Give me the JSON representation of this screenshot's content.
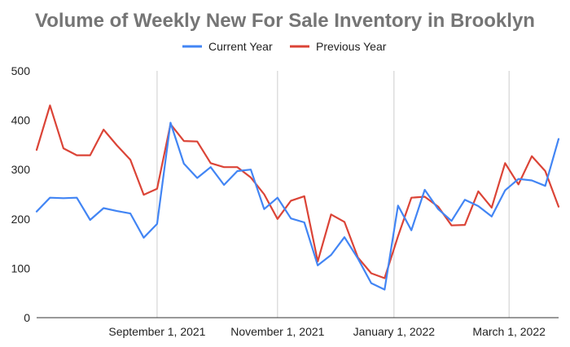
{
  "chart_data": {
    "type": "line",
    "title": "Volume of Weekly New For Sale Inventory in Brooklyn",
    "xlabel": "",
    "ylabel": "",
    "ylim": [
      0,
      500
    ],
    "y_ticks": [
      0,
      100,
      200,
      300,
      400,
      500
    ],
    "x_ticks": [
      {
        "label": "September 1, 2021",
        "index": 9
      },
      {
        "label": "November 1, 2021",
        "index": 18
      },
      {
        "label": "January 1, 2022",
        "index": 26.7
      },
      {
        "label": "March 1, 2022",
        "index": 35.3
      }
    ],
    "grid": "vertical lines at x ticks",
    "legend_position": "top",
    "series": [
      {
        "name": "Current Year",
        "color": "#4285f4",
        "values": [
          215,
          243,
          242,
          243,
          198,
          222,
          216,
          211,
          162,
          190,
          395,
          312,
          283,
          305,
          269,
          297,
          300,
          220,
          243,
          201,
          193,
          106,
          127,
          163,
          120,
          70,
          57,
          227,
          177,
          259,
          220,
          196,
          239,
          226,
          205,
          258,
          281,
          278,
          267,
          362
        ]
      },
      {
        "name": "Previous Year",
        "color": "#db4437",
        "values": [
          340,
          430,
          343,
          329,
          329,
          381,
          349,
          320,
          249,
          261,
          392,
          358,
          357,
          313,
          305,
          305,
          284,
          250,
          200,
          237,
          246,
          114,
          209,
          194,
          122,
          90,
          80,
          165,
          243,
          245,
          225,
          187,
          188,
          256,
          223,
          313,
          270,
          327,
          297,
          225
        ]
      }
    ]
  }
}
